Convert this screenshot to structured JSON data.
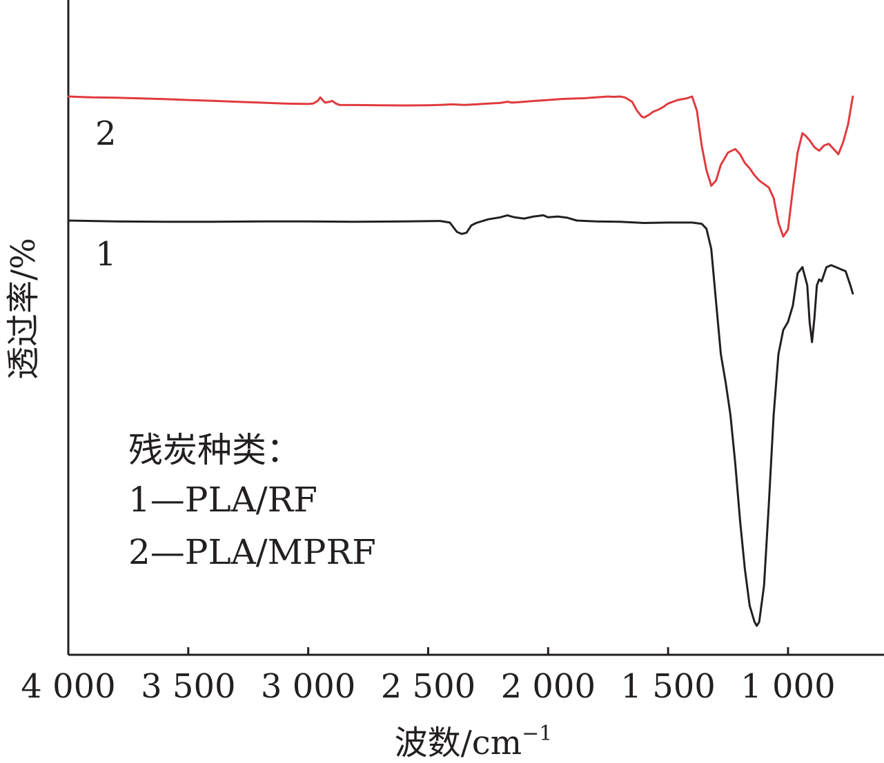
{
  "chart_data": {
    "type": "line",
    "xlabel": "波数/cm",
    "xlabel_sup": "−1",
    "ylabel": "透过率/%",
    "xlim": [
      4000,
      600
    ],
    "x_reversed": true,
    "y_ticks_shown": false,
    "xticks": [
      4000,
      3500,
      3000,
      2500,
      2000,
      1500,
      1000
    ],
    "xtick_labels": [
      "4 000",
      "3 500",
      "3 000",
      "2 500",
      "2 000",
      "1 500",
      "1 000"
    ],
    "legend": {
      "title": "残炭种类：",
      "entries": [
        "1—PLA/RF",
        "2—PLA/MPRF"
      ]
    },
    "series": [
      {
        "name": "1",
        "color": "#231f20",
        "points": [
          [
            4000,
            0.0
          ],
          [
            3800,
            0.002
          ],
          [
            3600,
            0.003
          ],
          [
            3400,
            0.003
          ],
          [
            3200,
            0.002
          ],
          [
            3000,
            0.002
          ],
          [
            2800,
            0.003
          ],
          [
            2600,
            0.002
          ],
          [
            2450,
            0.001
          ],
          [
            2410,
            0.005
          ],
          [
            2380,
            0.028
          ],
          [
            2360,
            0.033
          ],
          [
            2340,
            0.03
          ],
          [
            2320,
            0.012
          ],
          [
            2300,
            0.006
          ],
          [
            2250,
            -0.003
          ],
          [
            2200,
            -0.008
          ],
          [
            2170,
            -0.013
          ],
          [
            2140,
            -0.008
          ],
          [
            2100,
            -0.005
          ],
          [
            2060,
            -0.01
          ],
          [
            2020,
            -0.013
          ],
          [
            2000,
            -0.008
          ],
          [
            1960,
            -0.01
          ],
          [
            1920,
            -0.007
          ],
          [
            1880,
            0.0
          ],
          [
            1800,
            0.002
          ],
          [
            1700,
            0.003
          ],
          [
            1600,
            0.006
          ],
          [
            1500,
            0.005
          ],
          [
            1400,
            0.005
          ],
          [
            1360,
            0.008
          ],
          [
            1340,
            0.02
          ],
          [
            1320,
            0.07
          ],
          [
            1300,
            0.2
          ],
          [
            1280,
            0.33
          ],
          [
            1260,
            0.4
          ],
          [
            1240,
            0.48
          ],
          [
            1220,
            0.6
          ],
          [
            1200,
            0.74
          ],
          [
            1180,
            0.86
          ],
          [
            1160,
            0.95
          ],
          [
            1140,
            0.99
          ],
          [
            1130,
            1.0
          ],
          [
            1120,
            0.99
          ],
          [
            1100,
            0.9
          ],
          [
            1080,
            0.7
          ],
          [
            1060,
            0.48
          ],
          [
            1040,
            0.33
          ],
          [
            1020,
            0.27
          ],
          [
            1000,
            0.25
          ],
          [
            980,
            0.21
          ],
          [
            960,
            0.13
          ],
          [
            940,
            0.115
          ],
          [
            920,
            0.16
          ],
          [
            910,
            0.25
          ],
          [
            900,
            0.3
          ],
          [
            890,
            0.24
          ],
          [
            880,
            0.16
          ],
          [
            870,
            0.145
          ],
          [
            860,
            0.15
          ],
          [
            840,
            0.115
          ],
          [
            820,
            0.11
          ],
          [
            800,
            0.115
          ],
          [
            780,
            0.12
          ],
          [
            760,
            0.125
          ],
          [
            740,
            0.16
          ],
          [
            730,
            0.18
          ]
        ]
      },
      {
        "name": "2",
        "color": "#e03a3e",
        "points": [
          [
            4000,
            0.0
          ],
          [
            3900,
            0.005
          ],
          [
            3800,
            0.007
          ],
          [
            3700,
            0.011
          ],
          [
            3600,
            0.015
          ],
          [
            3500,
            0.02
          ],
          [
            3400,
            0.025
          ],
          [
            3300,
            0.03
          ],
          [
            3200,
            0.035
          ],
          [
            3100,
            0.04
          ],
          [
            3000,
            0.043
          ],
          [
            2980,
            0.04
          ],
          [
            2960,
            0.025
          ],
          [
            2950,
            0.005
          ],
          [
            2940,
            0.02
          ],
          [
            2930,
            0.035
          ],
          [
            2910,
            0.03
          ],
          [
            2900,
            0.025
          ],
          [
            2885,
            0.04
          ],
          [
            2870,
            0.048
          ],
          [
            2800,
            0.049
          ],
          [
            2700,
            0.05
          ],
          [
            2600,
            0.051
          ],
          [
            2500,
            0.05
          ],
          [
            2450,
            0.048
          ],
          [
            2400,
            0.045
          ],
          [
            2350,
            0.048
          ],
          [
            2300,
            0.045
          ],
          [
            2250,
            0.04
          ],
          [
            2200,
            0.037
          ],
          [
            2170,
            0.03
          ],
          [
            2150,
            0.035
          ],
          [
            2100,
            0.03
          ],
          [
            2050,
            0.025
          ],
          [
            2000,
            0.02
          ],
          [
            1950,
            0.015
          ],
          [
            1900,
            0.012
          ],
          [
            1850,
            0.01
          ],
          [
            1800,
            0.005
          ],
          [
            1750,
            0.0
          ],
          [
            1730,
            0.002
          ],
          [
            1700,
            0.0
          ],
          [
            1680,
            0.005
          ],
          [
            1650,
            0.03
          ],
          [
            1630,
            0.08
          ],
          [
            1610,
            0.115
          ],
          [
            1600,
            0.12
          ],
          [
            1580,
            0.105
          ],
          [
            1560,
            0.085
          ],
          [
            1540,
            0.075
          ],
          [
            1520,
            0.06
          ],
          [
            1500,
            0.04
          ],
          [
            1460,
            0.02
          ],
          [
            1420,
            0.01
          ],
          [
            1400,
            0.0
          ],
          [
            1380,
            0.08
          ],
          [
            1360,
            0.28
          ],
          [
            1340,
            0.42
          ],
          [
            1320,
            0.51
          ],
          [
            1300,
            0.48
          ],
          [
            1280,
            0.39
          ],
          [
            1250,
            0.32
          ],
          [
            1220,
            0.3
          ],
          [
            1200,
            0.33
          ],
          [
            1180,
            0.38
          ],
          [
            1160,
            0.41
          ],
          [
            1140,
            0.45
          ],
          [
            1120,
            0.48
          ],
          [
            1100,
            0.5
          ],
          [
            1080,
            0.52
          ],
          [
            1060,
            0.58
          ],
          [
            1040,
            0.72
          ],
          [
            1020,
            0.8
          ],
          [
            1000,
            0.76
          ],
          [
            980,
            0.53
          ],
          [
            960,
            0.32
          ],
          [
            940,
            0.21
          ],
          [
            930,
            0.22
          ],
          [
            910,
            0.25
          ],
          [
            890,
            0.29
          ],
          [
            870,
            0.31
          ],
          [
            850,
            0.28
          ],
          [
            830,
            0.27
          ],
          [
            810,
            0.3
          ],
          [
            790,
            0.33
          ],
          [
            770,
            0.26
          ],
          [
            750,
            0.16
          ],
          [
            730,
            0.0
          ]
        ]
      }
    ],
    "series_labels": [
      "1",
      "2"
    ]
  }
}
